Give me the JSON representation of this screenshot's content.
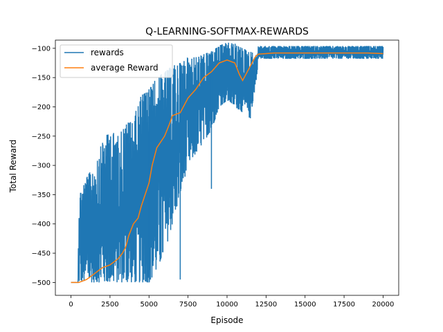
{
  "chart_data": {
    "type": "line",
    "title": "Q-LEARNING-SOFTMAX-REWARDS",
    "xlabel": "Episode",
    "ylabel": "Total Reward",
    "xlim": [
      -1000,
      21000
    ],
    "ylim": [
      -522,
      -86
    ],
    "xticks": [
      0,
      2500,
      5000,
      7500,
      10000,
      12500,
      15000,
      17500,
      20000
    ],
    "yticks": [
      -500,
      -450,
      -400,
      -350,
      -300,
      -250,
      -200,
      -150,
      -100
    ],
    "grid": false,
    "legend": {
      "position": "top-left",
      "entries": [
        "rewards",
        "average Reward"
      ]
    },
    "series": [
      {
        "name": "rewards",
        "color": "#1f77b4",
        "x_range": [
          0,
          20000
        ],
        "band_envelope": {
          "x": [
            0,
            450,
            500,
            1000,
            1500,
            2000,
            2500,
            3000,
            3500,
            4000,
            4500,
            5000,
            5500,
            6000,
            6500,
            7000,
            7500,
            8000,
            8500,
            9000,
            9500,
            10000,
            10500,
            11000,
            11500,
            11900,
            12000,
            12500,
            13000,
            14000,
            15000,
            16000,
            17000,
            18000,
            19000,
            20000
          ],
          "upper": [
            -500,
            -500,
            -350,
            -320,
            -300,
            -260,
            -240,
            -250,
            -230,
            -220,
            -180,
            -170,
            -150,
            -140,
            -130,
            -125,
            -115,
            -115,
            -110,
            -105,
            -95,
            -90,
            -92,
            -100,
            -105,
            -112,
            -96,
            -96,
            -96,
            -96,
            -96,
            -96,
            -96,
            -96,
            -96,
            -96
          ],
          "lower": [
            -500,
            -500,
            -500,
            -500,
            -500,
            -500,
            -500,
            -500,
            -500,
            -500,
            -500,
            -500,
            -480,
            -450,
            -400,
            -350,
            -300,
            -280,
            -260,
            -240,
            -200,
            -190,
            -200,
            -210,
            -220,
            -150,
            -118,
            -118,
            -118,
            -118,
            -118,
            -118,
            -118,
            -118,
            -118,
            -118
          ]
        },
        "spikes": [
          [
            450,
            -430
          ],
          [
            9000,
            -340
          ],
          [
            7000,
            -495
          ],
          [
            5000,
            -500
          ]
        ]
      },
      {
        "name": "average Reward",
        "color": "#ff7f0e",
        "x": [
          0,
          300,
          500,
          1000,
          1500,
          2000,
          2500,
          3000,
          3300,
          3500,
          3700,
          4000,
          4300,
          4500,
          5000,
          5200,
          5500,
          6000,
          6300,
          6500,
          7000,
          7500,
          8000,
          8500,
          9000,
          9500,
          10000,
          10500,
          10800,
          11000,
          11300,
          11500,
          11800,
          12000,
          12500,
          13000,
          14000,
          15000,
          16000,
          17000,
          18000,
          19000,
          20000
        ],
        "values": [
          -500,
          -500,
          -500,
          -495,
          -485,
          -475,
          -470,
          -460,
          -450,
          -440,
          -420,
          -400,
          -390,
          -370,
          -330,
          -300,
          -270,
          -250,
          -230,
          -215,
          -210,
          -185,
          -170,
          -150,
          -140,
          -125,
          -120,
          -125,
          -145,
          -155,
          -140,
          -130,
          -115,
          -110,
          -109,
          -108,
          -108,
          -108,
          -108,
          -108,
          -108,
          -108,
          -109
        ]
      }
    ]
  }
}
